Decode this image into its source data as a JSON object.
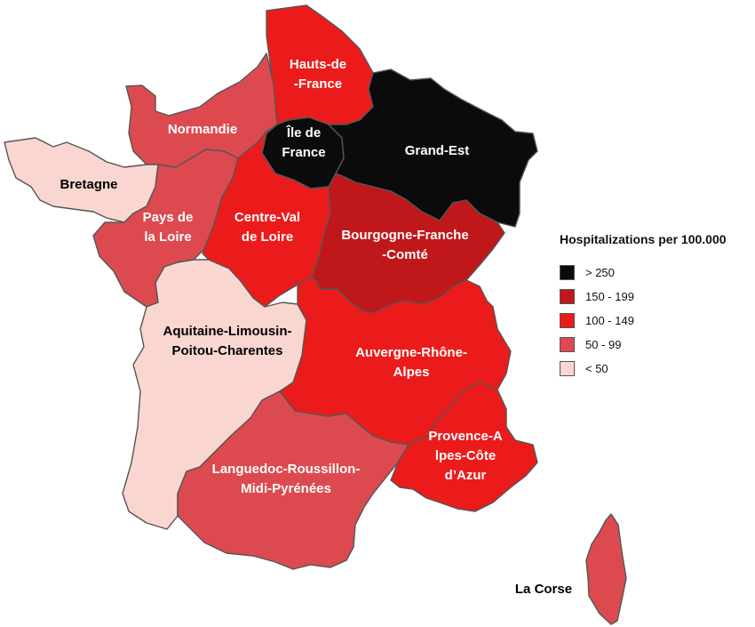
{
  "legend": {
    "title": "Hospitalizations per 100.000",
    "items": [
      {
        "label": "> 250",
        "color": "#0b0b0b"
      },
      {
        "label": "150 - 199",
        "color": "#c0171b"
      },
      {
        "label": "100 - 149",
        "color": "#ec1b1b"
      },
      {
        "label": "50 - 99",
        "color": "#dc4a50"
      },
      {
        "label": "< 50",
        "color": "#f9d7d0"
      }
    ]
  },
  "regions": [
    {
      "id": "hauts-de-france",
      "label_lines": [
        "Hauts-de",
        "-France"
      ],
      "color": "#ec1b1b",
      "label_color": "#ffffff"
    },
    {
      "id": "normandie",
      "label_lines": [
        "Normandie"
      ],
      "color": "#dc4a50",
      "label_color": "#ffffff"
    },
    {
      "id": "ile-de-france",
      "label_lines": [
        "Île de",
        "France"
      ],
      "color": "#0b0b0b",
      "label_color": "#ffffff"
    },
    {
      "id": "grand-est",
      "label_lines": [
        "Grand-Est"
      ],
      "color": "#0b0b0b",
      "label_color": "#ffffff"
    },
    {
      "id": "bretagne",
      "label_lines": [
        "Bretagne"
      ],
      "color": "#f9d7d0",
      "label_color": "#000000"
    },
    {
      "id": "pays-de-la-loire",
      "label_lines": [
        "Pays de",
        "la Loire"
      ],
      "color": "#dc4a50",
      "label_color": "#ffffff"
    },
    {
      "id": "centre-val-de-loire",
      "label_lines": [
        "Centre-Val",
        "de Loire"
      ],
      "color": "#ec1b1b",
      "label_color": "#ffffff"
    },
    {
      "id": "bourgogne-franche-comte",
      "label_lines": [
        "Bourgogne-Franche",
        "-Comté"
      ],
      "color": "#c0171b",
      "label_color": "#ffffff"
    },
    {
      "id": "aquitaine-limousin-poitou-charentes",
      "label_lines": [
        "Aquitaine-Limousin-",
        "Poitou-Charentes"
      ],
      "color": "#f9d7d0",
      "label_color": "#000000"
    },
    {
      "id": "auvergne-rhone-alpes",
      "label_lines": [
        "Auvergne-Rhône-",
        "Alpes"
      ],
      "color": "#ec1b1b",
      "label_color": "#ffffff"
    },
    {
      "id": "languedoc-roussillon-midi-pyrenees",
      "label_lines": [
        "Languedoc-Roussillon-",
        "Midi-Pyrénées"
      ],
      "color": "#dc4a50",
      "label_color": "#ffffff"
    },
    {
      "id": "provence-alpes-cote-dazur",
      "label_lines": [
        "Provence-A",
        "lpes-Côte",
        "d’Azur"
      ],
      "color": "#ec1b1b",
      "label_color": "#ffffff"
    },
    {
      "id": "la-corse",
      "label_lines": [
        "La Corse"
      ],
      "color": "#dc4a50",
      "label_color": "#000000"
    }
  ]
}
